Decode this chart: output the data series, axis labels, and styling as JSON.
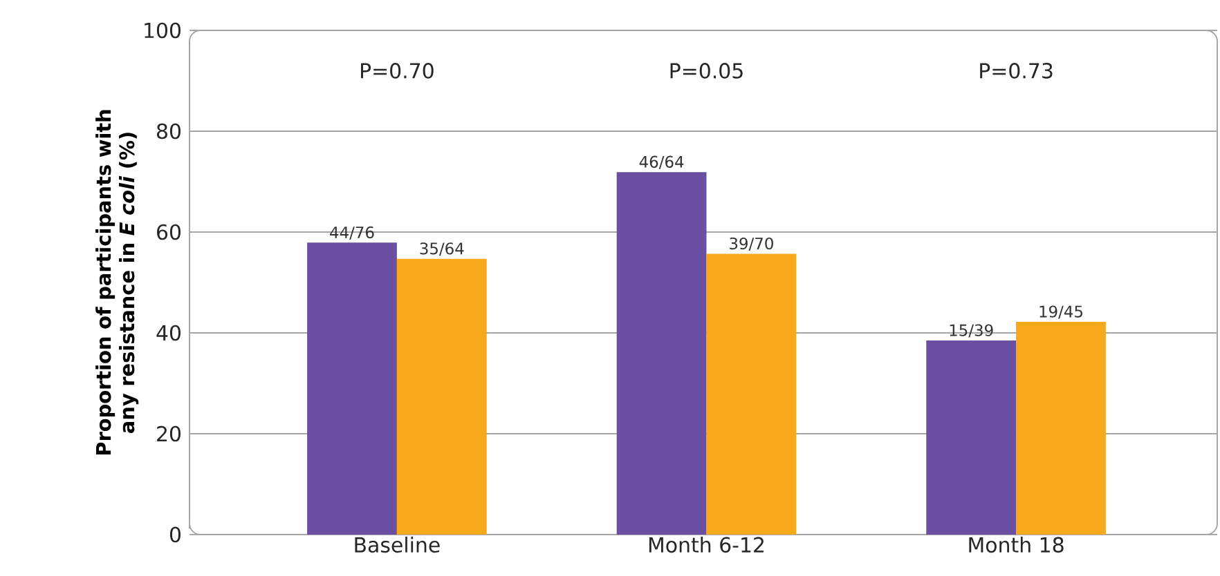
{
  "chart_data": {
    "type": "bar",
    "ylabel": "Proportion of participants with any resistance in *E coli* (%)",
    "categories": [
      "Baseline",
      "Month 6-12",
      "Month 18"
    ],
    "series": [
      {
        "color": "#6a4fa3",
        "values": [
          57.9,
          71.9,
          38.5
        ],
        "value_labels": [
          "44/76",
          "46/64",
          "15/39"
        ]
      },
      {
        "color": "#f7a81b",
        "values": [
          54.7,
          55.7,
          42.2
        ],
        "value_labels": [
          "35/64",
          "39/70",
          "19/45"
        ]
      }
    ],
    "ylim": [
      0,
      100
    ],
    "yticks": [
      0,
      20,
      40,
      60,
      80,
      100
    ],
    "grid": "y",
    "annotations": [
      "P=0.70",
      "P=0.05",
      "P=0.73"
    ]
  }
}
